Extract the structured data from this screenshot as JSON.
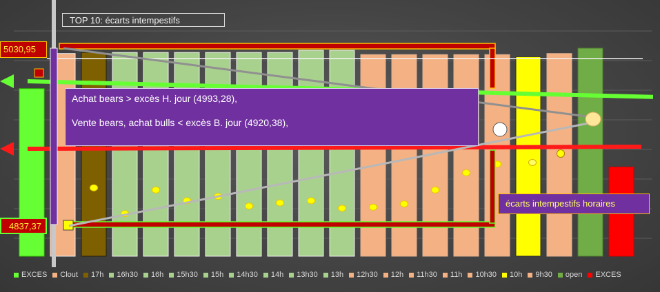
{
  "chart_title": "TOP 10: écarts intempestifs",
  "price_labels": {
    "top": "5030,95",
    "bottom": "4837,37"
  },
  "annotation": {
    "line1": "Achat bears > excès H. jour (4993,28),",
    "line2": "Vente bears, achat bulls < excès B. jour (4920,38),"
  },
  "callout": "écarts intempestifs horaires",
  "chart_data": {
    "type": "bar",
    "categories": [
      "EXCES",
      "Clout",
      "17h",
      "16h30",
      "16h",
      "15h30",
      "15h",
      "14h30",
      "14h",
      "13h30",
      "13h",
      "12h30",
      "12h",
      "11h30",
      "11h",
      "10h30",
      "10h",
      "9h30",
      "open",
      "EXCES"
    ],
    "colors": [
      "#66ff33",
      "#f4b183",
      "#7f6000",
      "#a9d18e",
      "#a9d18e",
      "#a9d18e",
      "#a9d18e",
      "#a9d18e",
      "#a9d18e",
      "#a9d18e",
      "#a9d18e",
      "#f4b183",
      "#f4b183",
      "#f4b183",
      "#f4b183",
      "#f4b183",
      "#ffff00",
      "#f4b183",
      "#70ad47",
      "#ff0000"
    ],
    "ranges": [
      [
        4837.37,
        4993.28
      ],
      [
        4837.37,
        5026
      ],
      [
        4837.37,
        5027
      ],
      [
        4837.37,
        5027
      ],
      [
        4837.37,
        5027
      ],
      [
        4837.37,
        5027
      ],
      [
        4837.37,
        5027
      ],
      [
        4837.37,
        5027
      ],
      [
        4837.37,
        5027
      ],
      [
        4837.37,
        5029
      ],
      [
        4837.37,
        5029
      ],
      [
        4837.37,
        5025
      ],
      [
        4837.37,
        5025
      ],
      [
        4837.37,
        5025
      ],
      [
        4837.37,
        5025
      ],
      [
        4837.37,
        5025
      ],
      [
        4837.37,
        5023
      ],
      [
        4837.37,
        5026
      ],
      [
        4837.37,
        5030.95
      ],
      [
        4837.37,
        4920.38
      ]
    ],
    "midpoints": [
      null,
      null,
      4901,
      4877,
      4899,
      4889,
      4893,
      4884,
      4887,
      4889,
      4882,
      4883,
      4886,
      4899,
      4915,
      4923,
      null,
      null,
      null,
      null
    ],
    "ymin": 4837.37,
    "ymax": 5030.95,
    "ref_lines": {
      "high": 4993.28,
      "low": 4920.38
    },
    "legend_position": "bottom"
  }
}
